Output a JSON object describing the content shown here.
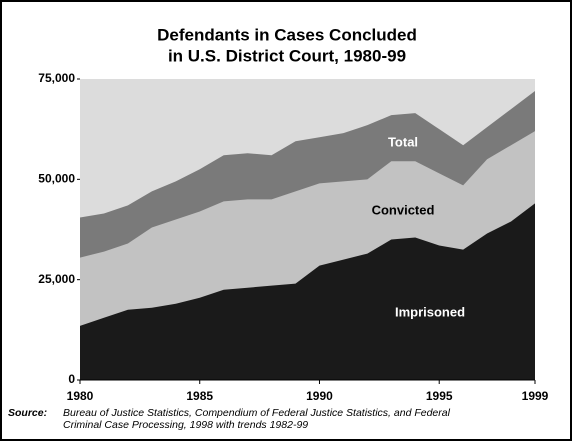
{
  "chart_data": {
    "type": "area",
    "title": [
      "Defendants in Cases Concluded",
      "in U.S. District Court, 1980-99"
    ],
    "x": [
      1980,
      1981,
      1982,
      1983,
      1984,
      1985,
      1986,
      1987,
      1988,
      1989,
      1990,
      1991,
      1992,
      1993,
      1994,
      1995,
      1996,
      1997,
      1998,
      1999
    ],
    "series": [
      {
        "name": "Total",
        "color": "#7a7a7a",
        "values": [
          40500,
          41500,
          43500,
          47000,
          49500,
          52500,
          56000,
          56500,
          56000,
          59500,
          60500,
          61500,
          63500,
          66000,
          66500,
          62500,
          58500,
          63000,
          67500,
          72000
        ]
      },
      {
        "name": "Convicted",
        "color": "#c2c2c2",
        "values": [
          30500,
          32000,
          34000,
          38000,
          40000,
          42000,
          44500,
          45000,
          45000,
          47000,
          49000,
          49500,
          50000,
          54500,
          54500,
          51500,
          48500,
          55000,
          58500,
          62000
        ]
      },
      {
        "name": "Imprisoned",
        "color": "#1a1a1a",
        "values": [
          13500,
          15500,
          17500,
          18000,
          19000,
          20500,
          22500,
          23000,
          23500,
          24000,
          28500,
          30000,
          31500,
          35000,
          35500,
          33500,
          32500,
          36500,
          39500,
          44000
        ]
      }
    ],
    "xlim": [
      1980,
      1999
    ],
    "xticks": [
      1980,
      1985,
      1990,
      1995,
      1999
    ],
    "ylim": [
      0,
      75000
    ],
    "yticks": [
      0,
      {
        "value": 25000,
        "label": "25,000"
      },
      {
        "value": 50000,
        "label": "50,000"
      },
      {
        "value": 75000,
        "label": "75,000"
      }
    ],
    "plot_background": "#dcdcdc",
    "source_label": "Source:",
    "source": [
      "Bureau of Justice Statistics, Compendium of Federal Justice Statistics, and Federal",
      "Criminal Case Processing, 1998 with trends 1982-99"
    ]
  }
}
